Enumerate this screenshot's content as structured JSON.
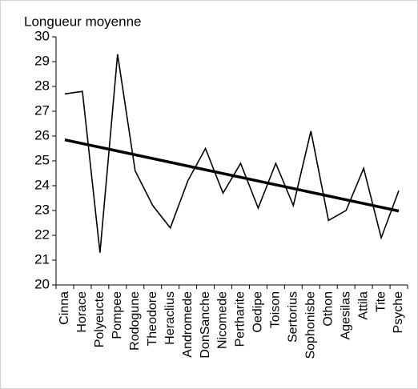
{
  "chart_data": {
    "type": "line",
    "title": "Longueur moyenne",
    "categories": [
      "Cinna",
      "Horace",
      "Polyeucte",
      "Pompee",
      "Rodogune",
      "Theodore",
      "Heraclius",
      "Andromede",
      "DonSanche",
      "Nicomede",
      "Pertharite",
      "Oedipe",
      "Toison",
      "Sertorius",
      "Sophonisbe",
      "Othon",
      "Agesilas",
      "Attila",
      "Tite",
      "Psyche"
    ],
    "series": [
      {
        "color": "#000000",
        "values": [
          27.7,
          27.8,
          21.3,
          29.3,
          24.6,
          23.2,
          22.3,
          24.2,
          25.5,
          23.7,
          24.9,
          23.1,
          24.9,
          23.2,
          26.2,
          22.6,
          23.0,
          24.7,
          21.9,
          23.8
        ]
      }
    ],
    "trend": {
      "color": "#000000",
      "values": [
        25.85,
        22.98
      ]
    },
    "ylim": [
      20,
      30
    ],
    "yticks": [
      20,
      21,
      22,
      23,
      24,
      25,
      26,
      27,
      28,
      29,
      30
    ],
    "grid": false
  }
}
